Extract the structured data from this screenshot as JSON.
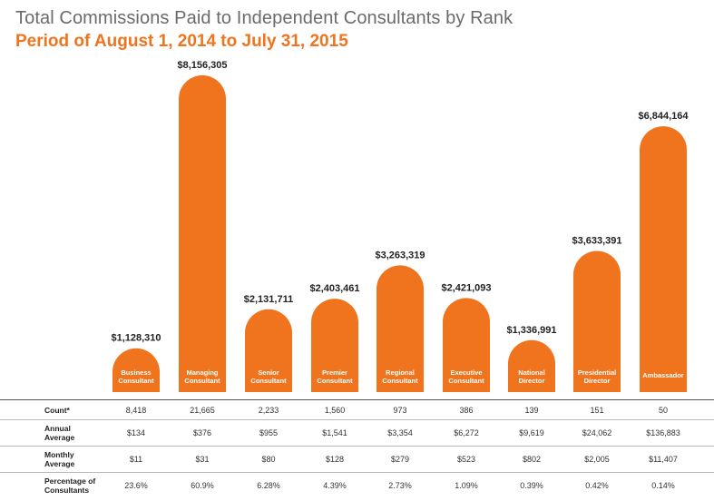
{
  "chart_data": {
    "type": "bar",
    "title": "Total Commissions Paid to Independent Consultants by Rank",
    "subtitle": "Period of August 1, 2014 to July 31, 2015",
    "categories": [
      [
        "Business",
        "Consultant"
      ],
      [
        "Managing",
        "Consultant"
      ],
      [
        "Senior",
        "Consultant"
      ],
      [
        "Premier",
        "Consultant"
      ],
      [
        "Regional",
        "Consultant"
      ],
      [
        "Executive",
        "Consultant"
      ],
      [
        "National",
        "Director"
      ],
      [
        "Presidential",
        "Director"
      ],
      [
        "Ambassador"
      ]
    ],
    "values": [
      1128310,
      8156305,
      2131711,
      2403461,
      3263319,
      2421093,
      1336991,
      3633391,
      6844164
    ],
    "value_labels": [
      "$1,128,310",
      "$8,156,305",
      "$2,131,711",
      "$2,403,461",
      "$3,263,319",
      "$2,421,093",
      "$1,336,991",
      "$3,633,391",
      "$6,844,164"
    ],
    "ylim": [
      0,
      8156305
    ],
    "bar_color": "#f0731e"
  },
  "table": {
    "rows": [
      {
        "label": "Count*",
        "values": [
          "8,418",
          "21,665",
          "2,233",
          "1,560",
          "973",
          "386",
          "139",
          "151",
          "50"
        ]
      },
      {
        "label": "Annual Average",
        "values": [
          "$134",
          "$376",
          "$955",
          "$1,541",
          "$3,354",
          "$6,272",
          "$9,619",
          "$24,062",
          "$136,883"
        ]
      },
      {
        "label": "Monthly Average",
        "values": [
          "$11",
          "$31",
          "$80",
          "$128",
          "$279",
          "$523",
          "$802",
          "$2,005",
          "$11,407"
        ]
      },
      {
        "label": "Percentage of Consultants",
        "values": [
          "23.6%",
          "60.9%",
          "6.28%",
          "4.39%",
          "2.73%",
          "1.09%",
          "0.39%",
          "0.42%",
          "0.14%"
        ]
      }
    ]
  }
}
